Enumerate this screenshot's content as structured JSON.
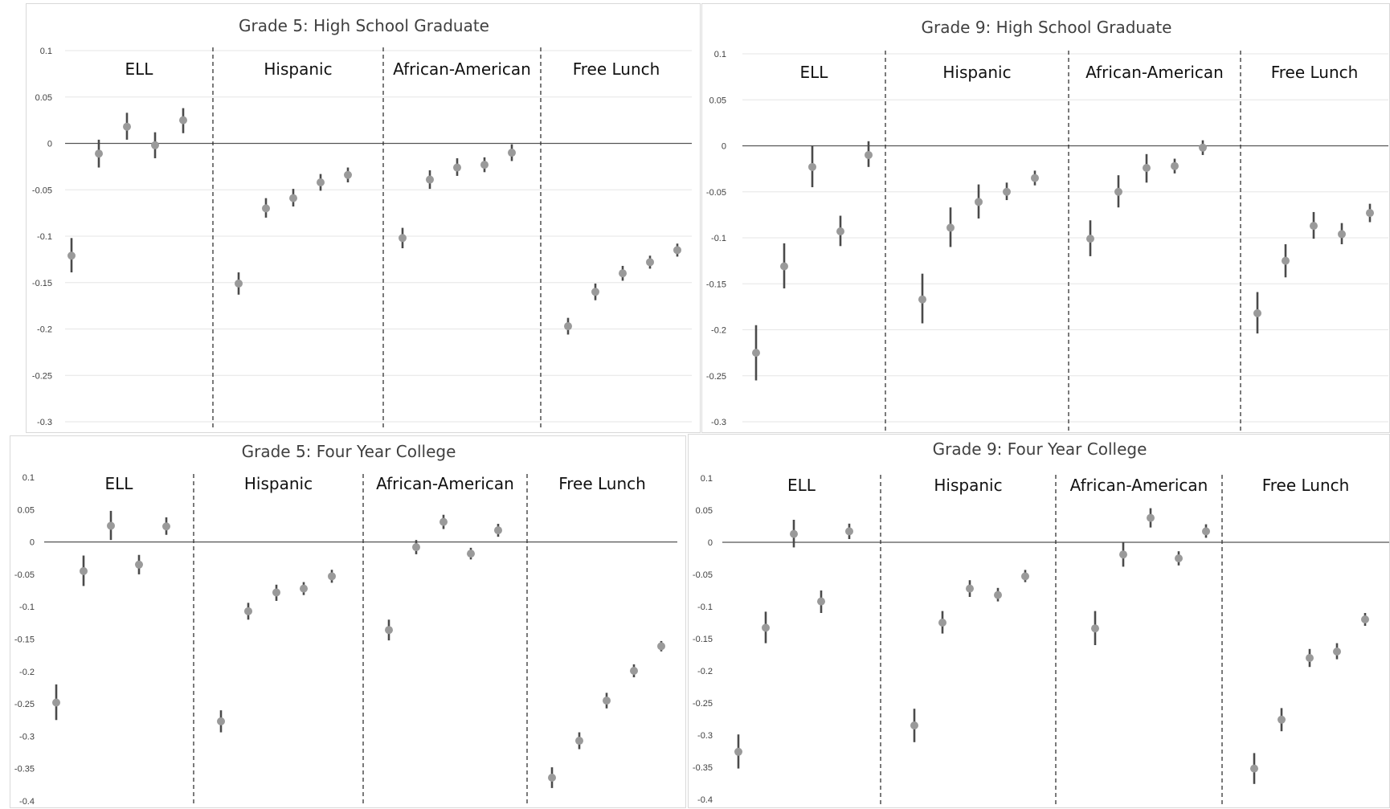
{
  "colors": {
    "marker": "#9a9a9a",
    "errorbar": "#4a4a4a",
    "zeroline": "#555555",
    "grid": "#e6e6e6",
    "divider": "#333333"
  },
  "chart_data": [
    {
      "type": "scatter",
      "title": "Grade 5: High School Graduate",
      "ylim": [
        -0.3,
        0.1
      ],
      "yticks": [
        "0.1",
        "0.05",
        "0",
        "-0.05",
        "-0.1",
        "-0.15",
        "-0.2",
        "-0.25",
        "-0.3"
      ],
      "grid": true,
      "groups": [
        {
          "label": "ELL",
          "points": [
            {
              "y": -0.121,
              "lo": -0.139,
              "hi": -0.102
            },
            {
              "y": -0.011,
              "lo": -0.026,
              "hi": 0.004
            },
            {
              "y": 0.018,
              "lo": 0.004,
              "hi": 0.033
            },
            {
              "y": -0.002,
              "lo": -0.016,
              "hi": 0.012
            },
            {
              "y": 0.025,
              "lo": 0.011,
              "hi": 0.038
            }
          ]
        },
        {
          "label": "Hispanic",
          "points": [
            {
              "y": -0.151,
              "lo": -0.163,
              "hi": -0.139
            },
            {
              "y": -0.07,
              "lo": -0.08,
              "hi": -0.059
            },
            {
              "y": -0.059,
              "lo": -0.068,
              "hi": -0.049
            },
            {
              "y": -0.042,
              "lo": -0.051,
              "hi": -0.033
            },
            {
              "y": -0.034,
              "lo": -0.042,
              "hi": -0.026
            }
          ]
        },
        {
          "label": "African-American",
          "points": [
            {
              "y": -0.102,
              "lo": -0.113,
              "hi": -0.091
            },
            {
              "y": -0.039,
              "lo": -0.049,
              "hi": -0.029
            },
            {
              "y": -0.026,
              "lo": -0.035,
              "hi": -0.016
            },
            {
              "y": -0.023,
              "lo": -0.031,
              "hi": -0.015
            },
            {
              "y": -0.01,
              "lo": -0.019,
              "hi": -0.001
            }
          ]
        },
        {
          "label": "Free Lunch",
          "points": [
            {
              "y": -0.197,
              "lo": -0.206,
              "hi": -0.188
            },
            {
              "y": -0.16,
              "lo": -0.169,
              "hi": -0.151
            },
            {
              "y": -0.14,
              "lo": -0.148,
              "hi": -0.132
            },
            {
              "y": -0.128,
              "lo": -0.135,
              "hi": -0.121
            },
            {
              "y": -0.115,
              "lo": -0.122,
              "hi": -0.108
            }
          ]
        }
      ]
    },
    {
      "type": "scatter",
      "title": "Grade 9: High School Graduate",
      "ylim": [
        -0.3,
        0.1
      ],
      "yticks": [
        "0.1",
        "0.05",
        "0",
        "-0.05",
        "-0.1",
        "-0.15",
        "-0.2",
        "-0.25",
        "-0.3"
      ],
      "grid": true,
      "groups": [
        {
          "label": "ELL",
          "points": [
            {
              "y": -0.225,
              "lo": -0.255,
              "hi": -0.195
            },
            {
              "y": -0.131,
              "lo": -0.155,
              "hi": -0.106
            },
            {
              "y": -0.023,
              "lo": -0.045,
              "hi": 0.0
            },
            {
              "y": -0.093,
              "lo": -0.109,
              "hi": -0.076
            },
            {
              "y": -0.01,
              "lo": -0.023,
              "hi": 0.005
            }
          ]
        },
        {
          "label": "Hispanic",
          "points": [
            {
              "y": -0.167,
              "lo": -0.193,
              "hi": -0.139
            },
            {
              "y": -0.089,
              "lo": -0.11,
              "hi": -0.067
            },
            {
              "y": -0.061,
              "lo": -0.079,
              "hi": -0.042
            },
            {
              "y": -0.05,
              "lo": -0.059,
              "hi": -0.04
            },
            {
              "y": -0.035,
              "lo": -0.043,
              "hi": -0.027
            }
          ]
        },
        {
          "label": "African-American",
          "points": [
            {
              "y": -0.101,
              "lo": -0.12,
              "hi": -0.081
            },
            {
              "y": -0.05,
              "lo": -0.067,
              "hi": -0.032
            },
            {
              "y": -0.024,
              "lo": -0.04,
              "hi": -0.009
            },
            {
              "y": -0.022,
              "lo": -0.03,
              "hi": -0.014
            },
            {
              "y": -0.002,
              "lo": -0.01,
              "hi": 0.006
            }
          ]
        },
        {
          "label": "Free Lunch",
          "points": [
            {
              "y": -0.182,
              "lo": -0.204,
              "hi": -0.159
            },
            {
              "y": -0.125,
              "lo": -0.143,
              "hi": -0.107
            },
            {
              "y": -0.087,
              "lo": -0.101,
              "hi": -0.072
            },
            {
              "y": -0.096,
              "lo": -0.107,
              "hi": -0.084
            },
            {
              "y": -0.073,
              "lo": -0.083,
              "hi": -0.063
            }
          ]
        }
      ]
    },
    {
      "type": "scatter",
      "title": "Grade 5: Four Year College",
      "ylim": [
        -0.4,
        0.1
      ],
      "yticks": [
        "0.1",
        "0.05",
        "0",
        "-0.05",
        "-0.1",
        "-0.15",
        "-0.2",
        "-0.25",
        "-0.3",
        "-0.35",
        "-0.4"
      ],
      "grid": false,
      "groups": [
        {
          "label": "ELL",
          "points": [
            {
              "y": -0.248,
              "lo": -0.275,
              "hi": -0.22
            },
            {
              "y": -0.045,
              "lo": -0.068,
              "hi": -0.021
            },
            {
              "y": 0.025,
              "lo": 0.003,
              "hi": 0.048
            },
            {
              "y": -0.035,
              "lo": -0.05,
              "hi": -0.02
            },
            {
              "y": 0.024,
              "lo": 0.011,
              "hi": 0.038
            }
          ]
        },
        {
          "label": "Hispanic",
          "points": [
            {
              "y": -0.277,
              "lo": -0.294,
              "hi": -0.26
            },
            {
              "y": -0.107,
              "lo": -0.12,
              "hi": -0.094
            },
            {
              "y": -0.078,
              "lo": -0.091,
              "hi": -0.066
            },
            {
              "y": -0.072,
              "lo": -0.082,
              "hi": -0.062
            },
            {
              "y": -0.053,
              "lo": -0.063,
              "hi": -0.043
            }
          ]
        },
        {
          "label": "African-American",
          "points": [
            {
              "y": -0.136,
              "lo": -0.152,
              "hi": -0.12
            },
            {
              "y": -0.008,
              "lo": -0.019,
              "hi": 0.003
            },
            {
              "y": 0.031,
              "lo": 0.02,
              "hi": 0.042
            },
            {
              "y": -0.018,
              "lo": -0.027,
              "hi": -0.009
            },
            {
              "y": 0.018,
              "lo": 0.008,
              "hi": 0.028
            }
          ]
        },
        {
          "label": "Free Lunch",
          "points": [
            {
              "y": -0.364,
              "lo": -0.38,
              "hi": -0.348
            },
            {
              "y": -0.307,
              "lo": -0.32,
              "hi": -0.294
            },
            {
              "y": -0.245,
              "lo": -0.257,
              "hi": -0.233
            },
            {
              "y": -0.199,
              "lo": -0.209,
              "hi": -0.189
            },
            {
              "y": -0.161,
              "lo": -0.169,
              "hi": -0.153
            }
          ]
        }
      ]
    },
    {
      "type": "scatter",
      "title": "Grade 9: Four Year College",
      "ylim": [
        -0.4,
        0.1
      ],
      "yticks": [
        "0.1",
        "0.05",
        "0",
        "-0.05",
        "-0.1",
        "-0.15",
        "-0.2",
        "-0.25",
        "-0.3",
        "-0.35",
        "-0.4"
      ],
      "grid": false,
      "groups": [
        {
          "label": "ELL",
          "points": [
            {
              "y": -0.326,
              "lo": -0.352,
              "hi": -0.299
            },
            {
              "y": -0.133,
              "lo": -0.157,
              "hi": -0.108
            },
            {
              "y": 0.013,
              "lo": -0.008,
              "hi": 0.035
            },
            {
              "y": -0.092,
              "lo": -0.11,
              "hi": -0.075
            },
            {
              "y": 0.017,
              "lo": 0.005,
              "hi": 0.029
            }
          ]
        },
        {
          "label": "Hispanic",
          "points": [
            {
              "y": -0.285,
              "lo": -0.311,
              "hi": -0.259
            },
            {
              "y": -0.125,
              "lo": -0.142,
              "hi": -0.107
            },
            {
              "y": -0.072,
              "lo": -0.085,
              "hi": -0.059
            },
            {
              "y": -0.082,
              "lo": -0.092,
              "hi": -0.071
            },
            {
              "y": -0.053,
              "lo": -0.062,
              "hi": -0.043
            }
          ]
        },
        {
          "label": "African-American",
          "points": [
            {
              "y": -0.134,
              "lo": -0.16,
              "hi": -0.107
            },
            {
              "y": -0.019,
              "lo": -0.038,
              "hi": 0.0
            },
            {
              "y": 0.038,
              "lo": 0.023,
              "hi": 0.053
            },
            {
              "y": -0.025,
              "lo": -0.036,
              "hi": -0.014
            },
            {
              "y": 0.017,
              "lo": 0.007,
              "hi": 0.028
            }
          ]
        },
        {
          "label": "Free Lunch",
          "points": [
            {
              "y": -0.352,
              "lo": -0.376,
              "hi": -0.328
            },
            {
              "y": -0.276,
              "lo": -0.294,
              "hi": -0.258
            },
            {
              "y": -0.18,
              "lo": -0.194,
              "hi": -0.166
            },
            {
              "y": -0.17,
              "lo": -0.182,
              "hi": -0.157
            },
            {
              "y": -0.12,
              "lo": -0.13,
              "hi": -0.11
            }
          ]
        }
      ]
    }
  ]
}
